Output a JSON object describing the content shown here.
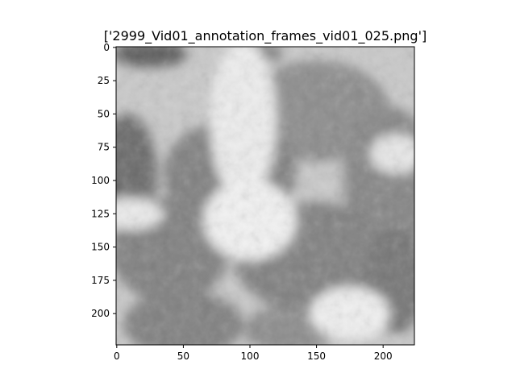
{
  "chart_data": {
    "type": "heatmap",
    "title": "['2999_Vid01_annotation_frames_vid01_025.png']",
    "xlabel": "",
    "ylabel": "",
    "colormap": "gray",
    "image_width": 224,
    "image_height": 224,
    "xlim": [
      -0.5,
      223.5
    ],
    "ylim": [
      223.5,
      -0.5
    ],
    "x_ticks": [
      0,
      50,
      100,
      150,
      200
    ],
    "y_ticks": [
      0,
      25,
      50,
      75,
      100,
      125,
      150,
      175,
      200
    ],
    "grid": false,
    "regions": [
      {
        "label": "dark-blob",
        "cx": 25,
        "cy": 5,
        "rx": 28,
        "ry": 10,
        "value": 0.36
      },
      {
        "label": "dark-blob",
        "cx": 105,
        "cy": 4,
        "rx": 20,
        "ry": 8,
        "value": 0.5
      },
      {
        "label": "dark-blob",
        "cx": 150,
        "cy": 48,
        "rx": 55,
        "ry": 38,
        "value": 0.55
      },
      {
        "label": "dark-blob",
        "cx": 8,
        "cy": 95,
        "rx": 22,
        "ry": 45,
        "value": 0.42
      },
      {
        "label": "dark-blob",
        "cx": 85,
        "cy": 95,
        "rx": 50,
        "ry": 40,
        "value": 0.5
      },
      {
        "label": "dark-blob",
        "cx": 205,
        "cy": 100,
        "rx": 35,
        "ry": 55,
        "value": 0.52
      },
      {
        "label": "dark-blob",
        "cx": 40,
        "cy": 152,
        "rx": 45,
        "ry": 40,
        "value": 0.5
      },
      {
        "label": "dark-blob",
        "cx": 148,
        "cy": 158,
        "rx": 60,
        "ry": 42,
        "value": 0.5
      },
      {
        "label": "dark-blob",
        "cx": 210,
        "cy": 175,
        "rx": 22,
        "ry": 40,
        "value": 0.46
      },
      {
        "label": "dark-blob",
        "cx": 50,
        "cy": 208,
        "rx": 45,
        "ry": 25,
        "value": 0.5
      },
      {
        "label": "dark-blob",
        "cx": 130,
        "cy": 212,
        "rx": 35,
        "ry": 18,
        "value": 0.55
      },
      {
        "label": "bright-band",
        "cx": 95,
        "cy": 55,
        "rx": 25,
        "ry": 60,
        "value": 0.93
      },
      {
        "label": "bright-band",
        "cx": 100,
        "cy": 130,
        "rx": 35,
        "ry": 30,
        "value": 0.95
      },
      {
        "label": "bright-band",
        "cx": 10,
        "cy": 125,
        "rx": 25,
        "ry": 12,
        "value": 0.92
      },
      {
        "label": "bright-band",
        "cx": 175,
        "cy": 200,
        "rx": 30,
        "ry": 20,
        "value": 0.94
      },
      {
        "label": "bright-band",
        "cx": 210,
        "cy": 80,
        "rx": 20,
        "ry": 15,
        "value": 0.9
      }
    ]
  }
}
